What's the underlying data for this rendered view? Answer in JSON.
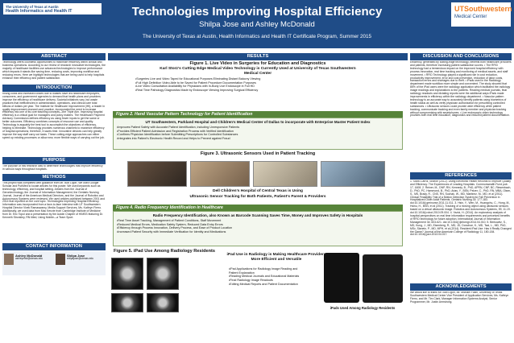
{
  "header": {
    "logo_left_line1": "The University of Texas at Austin",
    "logo_left_line2": "Health Informatics and Health IT",
    "title": "Technologies Improving Hospital Efficiency",
    "authors": "Shilpa Jose and Ashley McDonald",
    "affiliation": "The University of Texas at Austin, Health Informatics and Health IT Certificate Program, Summer 2015",
    "logo_right_line1": "UTSouthwestern",
    "logo_right_line2": "Medical Center"
  },
  "left": {
    "abstract_title": "ABSTRACT",
    "abstract_text": "Technology offers countless opportunities to maximize efficiency within clinical and business operations. According to our review of research innovative technologies, the majority of healthcare facilities use advanced technologies to improve performance which impacts it stands like saving time, reducing costs, improving workflow and reducing errors. Here we highlight technologies that are being used to help hospitals enhance their efficiency and patient satisfaction.",
    "intro_title": "INTRODUCTION",
    "intro_text": "Rising costs and increased losses due to wastes have led healthcare employers, consumers, and government agencies to demand that health plans and providers improve the efficiency of healthcare delivery. Societal initiatives vary, but waste practices that inefficiencies in administration, operations, and clinical care total billions of dollars per year. The Institute for Healthcare Improvement (IHI), a leader in quality improvement research and practice, incorporated the need to increase efficiency into one of its core teaching concepts—the Triple Aim. Improving hospital efficiency is a critical goal for managers and policy makers. The Healthcare Payment Advisory Commission defines efficiency as using fewer inputs to get the same or better outcomes. Efficiency combines concepts of resource use and quality. Technology is arguably the best tool to accomplish the objectives of efficiency, helping to eliminate. Technology provides numerous channels to maximize efficiency of hospital operations; therefore, it saves time. Innovative devices can help greatly improve the way staff carry out tasks. These cutting-edge approaches can either speed up existing processes or allow new, more flexible ways of carrying out the job.",
    "purpose_title": "PURPOSE",
    "purpose_text": "The purpose of this research was to determine technologies that improve efficiency in various ways throughout hospitals.",
    "methods_title": "METHODS",
    "methods_text": "This project was completed with guidance from Mr. Bob Ligon. We used Google Scholar and PubMed to locate articles for this poster. We used keywords such as technology, efficiency, and hospital setting. Articles from the Journal of Gerontechnology, the Journal of Information Management, the Geriatric Nursing Journal, Journal of the American Medical Directors, and the Journal of Robotics and Autonomous Systems were reviewed. We used articles published between 2001 and 2014 that reported on the core topic. Technologies Improving Hospital Efficiency. Information was incorporated from a face-to-face interview with UT Southwestern Hospital Director Vivek Ramaswamy, Media Support Services, Ms. Kathryn Fierro. Additionally, we used data from Mac Kenzie from Cambridge Institute of Medicine from Dr. Eric Topol and a presentation by the Austin Chapter of HIMSS featuring Dr. Kenneth Stronkley, RN titled, Using Mobile—a Team Sport.",
    "contact_title": "CONTACT INFORMATION",
    "contact_name1": "Ashley McDonald",
    "contact_info1": "ashleymcd@utexas.edu",
    "contact_name2": "Shilpa Jose",
    "contact_info2": "shilpajose@utexas.edu"
  },
  "mid": {
    "results_title": "RESULTS",
    "fig1_title": "Figure 1. Live Video in Surgeries for Education and Diagnostics",
    "fig1_sub": "Karl Storz's Cutting Edge Medical Video Technology is Currently Used at University of Texas Southwestern Medical Center",
    "fig1_bullets": [
      "Surgeries Live and Video Taped for Educational Purposes Eliminating Distant Balcony Viewing",
      "Full High Definition Video Able to be Saved for Patient Procedure Documentation Purposes",
      "Live Video Consultation Availability for Physicians with In-Body Live Endoscope in Full HD",
      "Real Time Pathology Diagnostics Made by Endoscope Viewing Improving Surgical Efficiency"
    ],
    "fig2_bar": "Figure 2. Hand Vascular Pattern Technology for Patient Identification",
    "fig2_sub": "UT Southwestern, Parkland Hospital and Children's Medical Center of Dallas to incorporate with Enterprise Master Patient Index",
    "fig2_bullets": [
      "Improves Patient Safety with Accurate Patient Identification, including Unresponsive Patients",
      "Provides Efficient Patient Admission and Registration Process with Verified Identification",
      "Confirms Physician Identification before Submitting Prescriptions for Controlled Substances",
      "Integrates into Patient's Electronic Health Record and Helps to Prevent against Fraud"
    ],
    "fig3_title": "Figure 3. Ultrasonic Sensors Used in Patient Tracking",
    "fig3_caption1": "Dell Children's Hospital of Central Texas is Using",
    "fig3_caption2": "Ultrasonic Sensor Tracking for Both Patients, Patient's Parent & Providers",
    "fig4_bar": "Figure 4. Radio Frequency Identification in Healthcare",
    "fig4_sub": "Radio Frequency Identification, also Known as Barcode Scanning Saves Time, Money and Improves Safety in Hospitals",
    "fig4_bullets": [
      "Real Time Asset Tracking, Management of Patient Conditions, Staff Movement",
      "Reduced Medical Errors, Medication Safety System, Reduced Data Entry Errors",
      "Efficiency through Process Innovation, Delivery Process, and Ease of Product Location",
      "Increased Patient Security with Immediate Verification for Identity and Medications"
    ],
    "fig5_title": "Figure 5. iPad Use Among Radiology Residents",
    "fig5_sub": "iPad Use in Radiology is Making Healthcare Providers More Efficient and Versatile",
    "fig5_bullets": [
      "iPad Applications for Radiology Image Reading and Patient Explanation",
      "Reading Medical Journals and Educational Materials",
      "Final Radiology Image Readouts",
      "Editing Medical Reports and Patient Documentation"
    ],
    "fig5_caption": "iPads Used Among Radiology Residents"
  },
  "right": {
    "discussion_title": "DISCUSSION AND CONCLUSIONS",
    "discussion_text": "Efficiency, generated by cutting-edge technology, benefits both healthcare providers and patients, therefore increasing patient satisfaction scores. • The RFID technology had a tremendous impact on the improved hospital efficiency with process innovation, real time tracking and monitoring of medical assets, and staff movement. • RFID Technology played a significant role in cost reduction, productivity improvement, error and cost prevention, reduction of labor costs, transaction errors and shortages due to theft. • iPads used in the Radiology department made workflow more simple and convenient. The study showed that 85% of the iPad users were the radiology application which facilitated the radiology image readings and explanations to the patients. Reading medical journals, final radiology readouts and dictating reports were the additional ways iPads made improvements in efficiency within the radiology department. • Vascular pattern technology is an accurate way to accurately identify patients using biometrics of health status as well as verify physician authorization for prescribing controlled substances. • Ultrasonic sensors could provide wide efficiency while patient tracking, communicate tracking and even family member and physician tracking without compromising with smartphones. • Live endoscopic video technology provides both real time education, diagnostics and reduced patient documentation.",
    "references_title": "REFERENCES",
    "references_text": "1. Silow-Carrol, Sharon (2012). Using Electronic Health Records to Improve Quality and Efficiency: The Experiences of Leading Hospitals. Commonwealth Fund pub. 17, 1608. 2. Reiner, M., DNP, RN, Kennedy, B., PhD, APRN, CNP, BC, Riesenbach, D., PhD, PC, Hammond, B., PhD, Arias, Y., BSN, Pelzer, C., PhD, RN, MBA, Olsen, S., MS, Brady, R., CNS, RN, Suchak, W., MD, Martinez, M., MD, et al (2011). Clinical Feasibility Trial of a Motion Detection System for Fall Prevention in Hospitalized Older Adult Patients. Geriatric Nursing 33: 177-183. doi:10.1016/j.gerinurse.2011.11.011. 3. Hsin, Y., Wen, M., Huangchu, C., Hong, M., Hsinu, H., BSN, et al (2011). Tracking of a moving object using ultrasonic sensors based on a virtual ultrasonic image. Robotics and Autonomous Systems, 59, 11-19. doi:10.1016/j.robot.2010.09.004. 4. Yazici, H. (2014). An exploratory analysis of hospital perspectives on real time information requirements and perceived benefits of RFID technology for future adoption. International Journal of Information Management 34: 603-621. doi:10.1016/j.ijinfomgt.2014.04.010. 5. Berkowitz, S., MD, Kung, J., MD, Eisenberg, R., MD, JD, Donohoe, K., MD, Tsai, L., MD, PhD, MSc, Slanetz, P., MD, MPH, et al (2014). Resident iPad Use: Has it Really Changed the Game? Journal of the American College of Radiology 11, 180-184. doi:10.1016/j.jacr.2013.04.017.",
    "ack_title": "ACKNOWLEDGMENTS",
    "ack_text": "We would like to thank Mr. Bob Ligon, Mr. Michael Fallin, University of Texas Southwestern Medical Center Vice President of Application Services, Ms. Kathryn Fierro, and Mr. Tim Clark, Manager Information Systems Analyst, Senior Programmer, Mr. Justin Armstrong."
  }
}
